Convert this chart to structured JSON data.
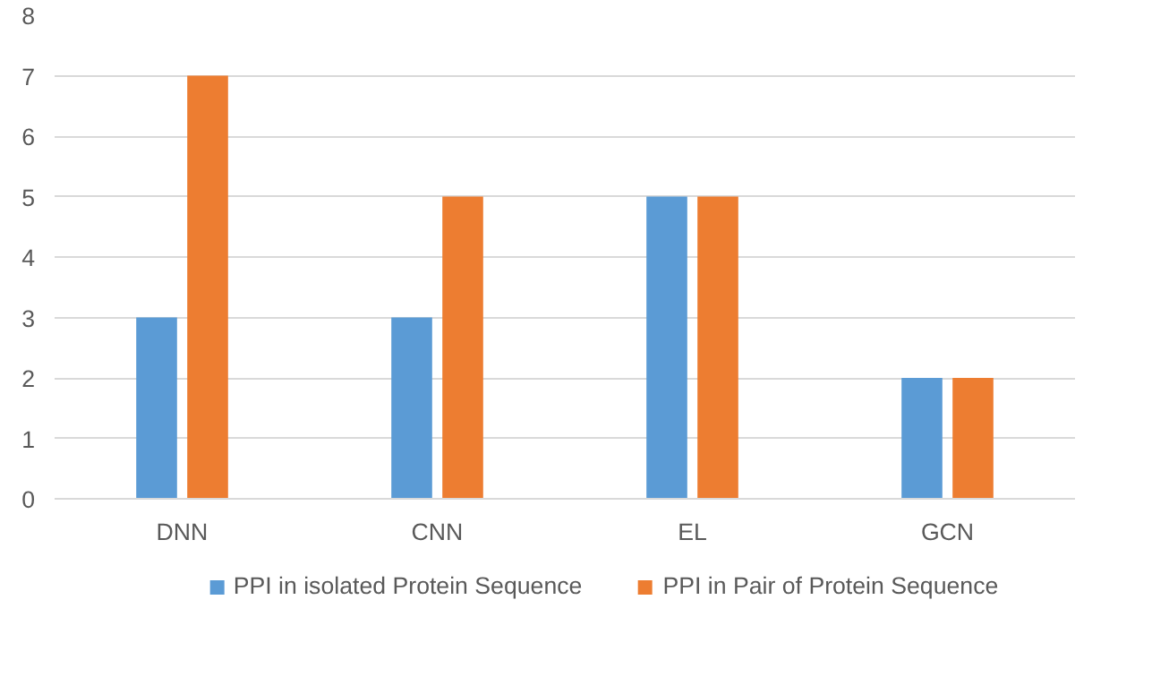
{
  "chart_data": {
    "type": "bar",
    "categories": [
      "DNN",
      "CNN",
      "EL",
      "GCN"
    ],
    "series": [
      {
        "name": "PPI in isolated Protein Sequence",
        "color": "#5b9bd5",
        "values": [
          3,
          3,
          5,
          2
        ]
      },
      {
        "name": "PPI in Pair of Protein Sequence",
        "color": "#ed7d31",
        "values": [
          7,
          5,
          5,
          2
        ]
      }
    ],
    "ylim": [
      0,
      8
    ],
    "yticks": [
      0,
      1,
      2,
      3,
      4,
      5,
      6,
      7,
      8
    ],
    "grid": "y",
    "legend": "bottom"
  }
}
